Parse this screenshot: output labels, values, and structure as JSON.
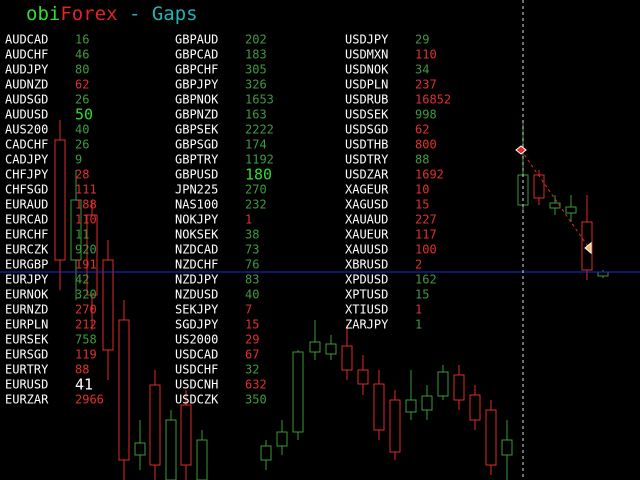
{
  "header": {
    "title_parts": [
      {
        "text": "obi",
        "color": "#33dd33"
      },
      {
        "text": "Forex",
        "color": "#e02424"
      },
      {
        "text": " - Gaps",
        "color": "#22b4b4"
      }
    ]
  },
  "columns": [
    [
      {
        "symbol": "AUDCAD",
        "gap": 16,
        "color": "#3f9a3f"
      },
      {
        "symbol": "AUDCHF",
        "gap": 46,
        "color": "#3f9a3f"
      },
      {
        "symbol": "AUDJPY",
        "gap": 80,
        "color": "#3f9a3f"
      },
      {
        "symbol": "AUDNZD",
        "gap": 62,
        "color": "#e03030"
      },
      {
        "symbol": "AUDSGD",
        "gap": 26,
        "color": "#3f9a3f"
      },
      {
        "symbol": "AUDUSD",
        "gap": 50,
        "color": "#33dd33",
        "large": true
      },
      {
        "symbol": "AUS200",
        "gap": 40,
        "color": "#3f9a3f"
      },
      {
        "symbol": "CADCHF",
        "gap": 26,
        "color": "#3f9a3f"
      },
      {
        "symbol": "CADJPY",
        "gap": 9,
        "color": "#3f9a3f"
      },
      {
        "symbol": "CHFJPY",
        "gap": 28,
        "color": "#e03030"
      },
      {
        "symbol": "CHFSGD",
        "gap": 111,
        "color": "#e03030"
      },
      {
        "symbol": "EURAUD",
        "gap": 188,
        "color": "#e03030"
      },
      {
        "symbol": "EURCAD",
        "gap": 110,
        "color": "#e03030"
      },
      {
        "symbol": "EURCHF",
        "gap": 11,
        "color": "#3f9a3f"
      },
      {
        "symbol": "EURCZK",
        "gap": 920,
        "color": "#3f9a3f"
      },
      {
        "symbol": "EURGBP",
        "gap": 191,
        "color": "#e03030"
      },
      {
        "symbol": "EURJPY",
        "gap": 42,
        "color": "#3f9a3f"
      },
      {
        "symbol": "EURNOK",
        "gap": 320,
        "color": "#3f9a3f"
      },
      {
        "symbol": "EURNZD",
        "gap": 270,
        "color": "#e03030"
      },
      {
        "symbol": "EURPLN",
        "gap": 212,
        "color": "#e03030"
      },
      {
        "symbol": "EURSEK",
        "gap": 758,
        "color": "#3f9a3f"
      },
      {
        "symbol": "EURSGD",
        "gap": 119,
        "color": "#e03030"
      },
      {
        "symbol": "EURTRY",
        "gap": 88,
        "color": "#e03030"
      },
      {
        "symbol": "EURUSD",
        "gap": 41,
        "color": "#ffffff",
        "large": true
      },
      {
        "symbol": "EURZAR",
        "gap": 2966,
        "color": "#e03030"
      }
    ],
    [
      {
        "symbol": "GBPAUD",
        "gap": 202,
        "color": "#3f9a3f"
      },
      {
        "symbol": "GBPCAD",
        "gap": 183,
        "color": "#3f9a3f"
      },
      {
        "symbol": "GBPCHF",
        "gap": 305,
        "color": "#3f9a3f"
      },
      {
        "symbol": "GBPJPY",
        "gap": 326,
        "color": "#3f9a3f"
      },
      {
        "symbol": "GBPNOK",
        "gap": 1653,
        "color": "#3f9a3f"
      },
      {
        "symbol": "GBPNZD",
        "gap": 163,
        "color": "#3f9a3f"
      },
      {
        "symbol": "GBPSEK",
        "gap": 2222,
        "color": "#3f9a3f"
      },
      {
        "symbol": "GBPSGD",
        "gap": 174,
        "color": "#3f9a3f"
      },
      {
        "symbol": "GBPTRY",
        "gap": 1192,
        "color": "#3f9a3f"
      },
      {
        "symbol": "GBPUSD",
        "gap": 180,
        "color": "#33dd33",
        "large": true
      },
      {
        "symbol": "JPN225",
        "gap": 270,
        "color": "#3f9a3f"
      },
      {
        "symbol": "NAS100",
        "gap": 232,
        "color": "#3f9a3f"
      },
      {
        "symbol": "NOKJPY",
        "gap": 1,
        "color": "#e03030"
      },
      {
        "symbol": "NOKSEK",
        "gap": 38,
        "color": "#3f9a3f"
      },
      {
        "symbol": "NZDCAD",
        "gap": 73,
        "color": "#3f9a3f"
      },
      {
        "symbol": "NZDCHF",
        "gap": 76,
        "color": "#3f9a3f"
      },
      {
        "symbol": "NZDJPY",
        "gap": 83,
        "color": "#3f9a3f"
      },
      {
        "symbol": "NZDUSD",
        "gap": 40,
        "color": "#3f9a3f"
      },
      {
        "symbol": "SEKJPY",
        "gap": 7,
        "color": "#e03030"
      },
      {
        "symbol": "SGDJPY",
        "gap": 15,
        "color": "#e03030"
      },
      {
        "symbol": "US2000",
        "gap": 29,
        "color": "#e03030"
      },
      {
        "symbol": "USDCAD",
        "gap": 67,
        "color": "#e03030"
      },
      {
        "symbol": "USDCHF",
        "gap": 32,
        "color": "#3f9a3f"
      },
      {
        "symbol": "USDCNH",
        "gap": 632,
        "color": "#e03030"
      },
      {
        "symbol": "USDCZK",
        "gap": 350,
        "color": "#3f9a3f"
      }
    ],
    [
      {
        "symbol": "USDJPY",
        "gap": 29,
        "color": "#3f9a3f"
      },
      {
        "symbol": "USDMXN",
        "gap": 110,
        "color": "#e03030"
      },
      {
        "symbol": "USDNOK",
        "gap": 34,
        "color": "#3f9a3f"
      },
      {
        "symbol": "USDPLN",
        "gap": 237,
        "color": "#e03030"
      },
      {
        "symbol": "USDRUB",
        "gap": 16852,
        "color": "#e03030"
      },
      {
        "symbol": "USDSEK",
        "gap": 998,
        "color": "#3f9a3f"
      },
      {
        "symbol": "USDSGD",
        "gap": 62,
        "color": "#e03030"
      },
      {
        "symbol": "USDTHB",
        "gap": 800,
        "color": "#e03030"
      },
      {
        "symbol": "USDTRY",
        "gap": 88,
        "color": "#3f9a3f"
      },
      {
        "symbol": "USDZAR",
        "gap": 1692,
        "color": "#e03030"
      },
      {
        "symbol": "XAGEUR",
        "gap": 10,
        "color": "#e03030"
      },
      {
        "symbol": "XAGUSD",
        "gap": 15,
        "color": "#e03030"
      },
      {
        "symbol": "XAUAUD",
        "gap": 227,
        "color": "#e03030"
      },
      {
        "symbol": "XAUEUR",
        "gap": 117,
        "color": "#e03030"
      },
      {
        "symbol": "XAUUSD",
        "gap": 100,
        "color": "#e03030"
      },
      {
        "symbol": "XBRUSD",
        "gap": 2,
        "color": "#e03030"
      },
      {
        "symbol": "XPDUSD",
        "gap": 162,
        "color": "#3f9a3f"
      },
      {
        "symbol": "XPTUSD",
        "gap": 15,
        "color": "#3f9a3f"
      },
      {
        "symbol": "XTIUSD",
        "gap": 1,
        "color": "#e03030"
      },
      {
        "symbol": "ZARJPY",
        "gap": 1,
        "color": "#3f9a3f"
      }
    ]
  ]
}
